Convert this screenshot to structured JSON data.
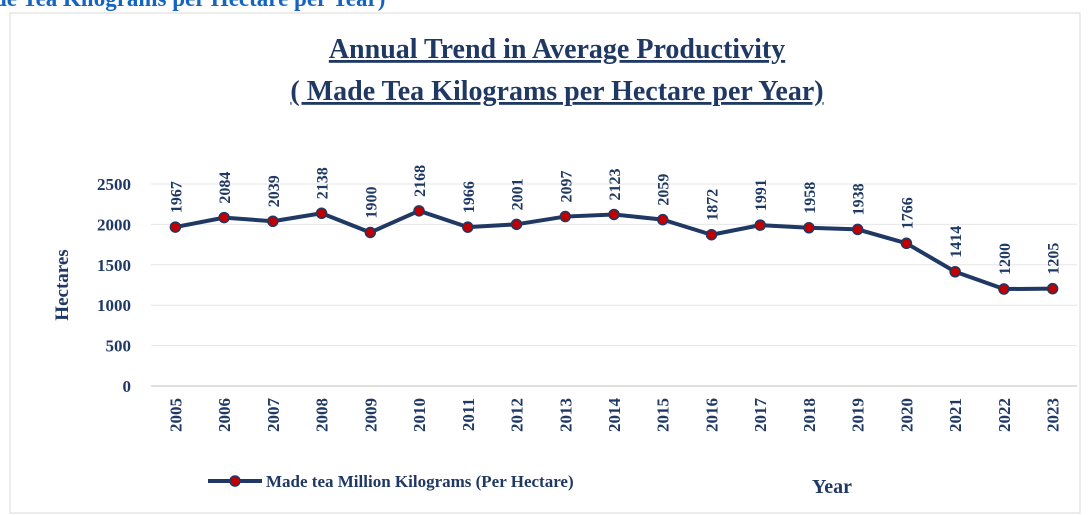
{
  "caption": "de Tea Kilograms per Hectare per Year)",
  "chart_data": {
    "type": "line",
    "title": "Annual Trend  in Average Productivity",
    "subtitle": "( Made Tea Kilograms per Hectare per Year)",
    "x_label": "Year",
    "y_label": "Hectares",
    "categories": [
      "2005",
      "2006",
      "2007",
      "2008",
      "2009",
      "2010",
      "2011",
      "2012",
      "2013",
      "2014",
      "2015",
      "2016",
      "2017",
      "2018",
      "2019",
      "2020",
      "2021",
      "2022",
      "2023"
    ],
    "series": [
      {
        "name": "Made tea Million Kilograms (Per Hectare)",
        "color": "#1f3864",
        "marker_color": "#c00000",
        "values": [
          1967,
          2084,
          2039,
          2138,
          1900,
          2168,
          1966,
          2001,
          2097,
          2123,
          2059,
          1872,
          1991,
          1958,
          1938,
          1766,
          1414,
          1200,
          1205
        ]
      }
    ],
    "ylim": [
      0,
      2500
    ],
    "yticks": [
      0,
      500,
      1000,
      1500,
      2000,
      2500
    ],
    "grid": true,
    "legend": "bottom"
  }
}
